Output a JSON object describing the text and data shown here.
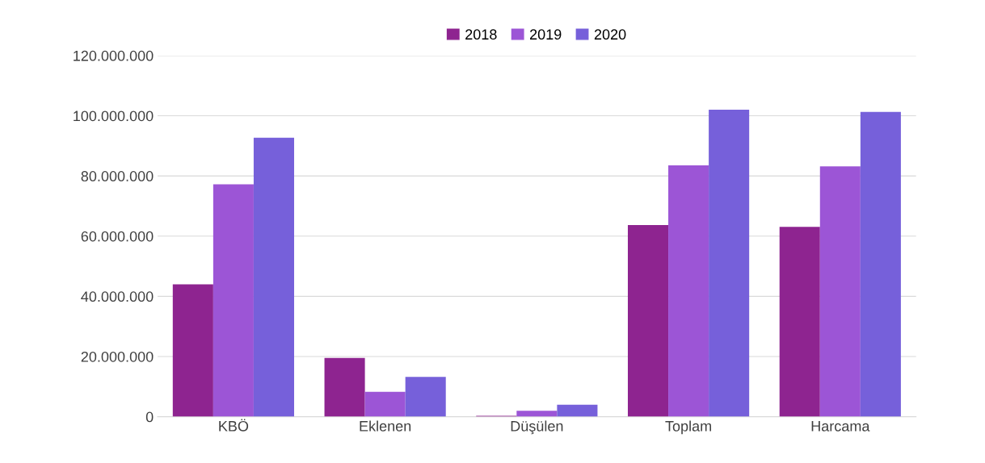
{
  "chart_data": {
    "type": "bar",
    "categories": [
      "KBÖ",
      "Eklenen",
      "Düşülen",
      "Toplam",
      "Harcama"
    ],
    "series": [
      {
        "name": "2018",
        "color": "#8e2490",
        "values": [
          44000000,
          19500000,
          300000,
          63700000,
          63100000
        ]
      },
      {
        "name": "2019",
        "color": "#9c55d6",
        "values": [
          77200000,
          8300000,
          2000000,
          83500000,
          83200000
        ]
      },
      {
        "name": "2020",
        "color": "#7660da",
        "values": [
          92700000,
          13200000,
          4000000,
          102000000,
          101300000
        ]
      }
    ],
    "ylim": [
      0,
      120000000
    ],
    "yticks": [
      {
        "value": 0,
        "label": "0"
      },
      {
        "value": 20000000,
        "label": "20.000.000"
      },
      {
        "value": 40000000,
        "label": "40.000.000"
      },
      {
        "value": 60000000,
        "label": "60.000.000"
      },
      {
        "value": 80000000,
        "label": "80.000.000"
      },
      {
        "value": 100000000,
        "label": "100.000.000"
      },
      {
        "value": 120000000,
        "label": "120.000.000"
      }
    ],
    "grid": "y",
    "legend": "top"
  }
}
